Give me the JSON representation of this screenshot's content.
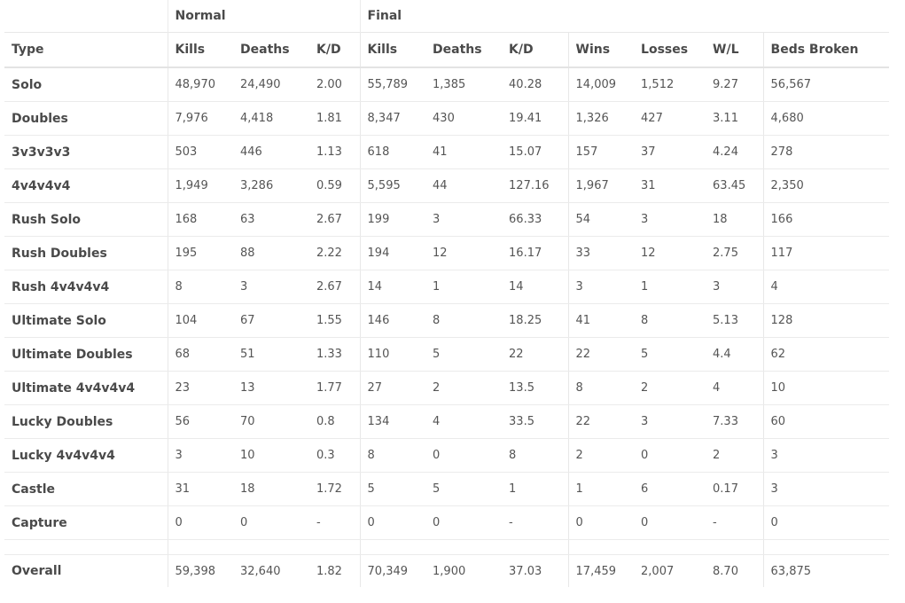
{
  "groups": {
    "normal": "Normal",
    "final": "Final"
  },
  "columns": [
    "Type",
    "Kills",
    "Deaths",
    "K/D",
    "Kills",
    "Deaths",
    "K/D",
    "Wins",
    "Losses",
    "W/L",
    "Beds Broken"
  ],
  "rows": [
    {
      "type": "Solo",
      "cells": [
        "48,970",
        "24,490",
        "2.00",
        "55,789",
        "1,385",
        "40.28",
        "14,009",
        "1,512",
        "9.27",
        "56,567"
      ]
    },
    {
      "type": "Doubles",
      "cells": [
        "7,976",
        "4,418",
        "1.81",
        "8,347",
        "430",
        "19.41",
        "1,326",
        "427",
        "3.11",
        "4,680"
      ]
    },
    {
      "type": "3v3v3v3",
      "cells": [
        "503",
        "446",
        "1.13",
        "618",
        "41",
        "15.07",
        "157",
        "37",
        "4.24",
        "278"
      ]
    },
    {
      "type": "4v4v4v4",
      "cells": [
        "1,949",
        "3,286",
        "0.59",
        "5,595",
        "44",
        "127.16",
        "1,967",
        "31",
        "63.45",
        "2,350"
      ]
    },
    {
      "type": "Rush Solo",
      "cells": [
        "168",
        "63",
        "2.67",
        "199",
        "3",
        "66.33",
        "54",
        "3",
        "18",
        "166"
      ]
    },
    {
      "type": "Rush Doubles",
      "cells": [
        "195",
        "88",
        "2.22",
        "194",
        "12",
        "16.17",
        "33",
        "12",
        "2.75",
        "117"
      ]
    },
    {
      "type": "Rush 4v4v4v4",
      "cells": [
        "8",
        "3",
        "2.67",
        "14",
        "1",
        "14",
        "3",
        "1",
        "3",
        "4"
      ]
    },
    {
      "type": "Ultimate Solo",
      "cells": [
        "104",
        "67",
        "1.55",
        "146",
        "8",
        "18.25",
        "41",
        "8",
        "5.13",
        "128"
      ]
    },
    {
      "type": "Ultimate Doubles",
      "cells": [
        "68",
        "51",
        "1.33",
        "110",
        "5",
        "22",
        "22",
        "5",
        "4.4",
        "62"
      ]
    },
    {
      "type": "Ultimate 4v4v4v4",
      "cells": [
        "23",
        "13",
        "1.77",
        "27",
        "2",
        "13.5",
        "8",
        "2",
        "4",
        "10"
      ]
    },
    {
      "type": "Lucky Doubles",
      "cells": [
        "56",
        "70",
        "0.8",
        "134",
        "4",
        "33.5",
        "22",
        "3",
        "7.33",
        "60"
      ]
    },
    {
      "type": "Lucky 4v4v4v4",
      "cells": [
        "3",
        "10",
        "0.3",
        "8",
        "0",
        "8",
        "2",
        "0",
        "2",
        "3"
      ]
    },
    {
      "type": "Castle",
      "cells": [
        "31",
        "18",
        "1.72",
        "5",
        "5",
        "1",
        "1",
        "6",
        "0.17",
        "3"
      ]
    },
    {
      "type": "Capture",
      "cells": [
        "0",
        "0",
        "-",
        "0",
        "0",
        "-",
        "0",
        "0",
        "-",
        "0"
      ]
    }
  ],
  "overall": {
    "type": "Overall",
    "cells": [
      "59,398",
      "32,640",
      "1.82",
      "70,349",
      "1,900",
      "37.03",
      "17,459",
      "2,007",
      "8.70",
      "63,875"
    ]
  }
}
